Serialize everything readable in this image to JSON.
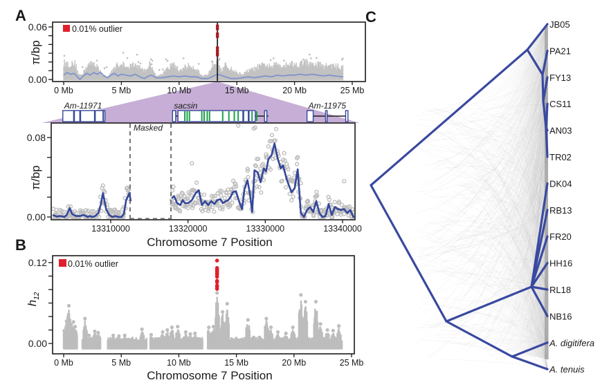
{
  "colors": {
    "outlier": "#e0202a",
    "outlier_dark": "#a81c24",
    "scatter": "#bdbdbd",
    "smooth_line": "#34479a",
    "smooth_line_light": "#7f93cc",
    "tree_branch": "#3949a0",
    "zoom_highlight": "#c6aed6",
    "gene_outline": "#34479a",
    "gene_exon_green": "#1e9e4a",
    "masked_line": "#7a7a7a",
    "axis": "#1a1a1a"
  },
  "panels": {
    "A": {
      "letter": "A"
    },
    "B": {
      "letter": "B"
    },
    "C": {
      "letter": "C"
    }
  },
  "chart_data": [
    {
      "id": "panel-A-genome",
      "type": "scatter",
      "title": "",
      "xlabel": "",
      "ylabel": "π/bp",
      "xlim_mb": [
        -0.9,
        26
      ],
      "ylim": [
        -0.002,
        0.062
      ],
      "xticks": [
        0,
        5,
        10,
        15,
        20,
        25
      ],
      "xtick_labels": [
        "0 Mb",
        "5 Mb",
        "10 Mb",
        "15 Mb",
        "20 Mb",
        "25 Mb"
      ],
      "yticks": [
        0.0,
        0.01,
        0.02,
        0.03,
        0.04,
        0.05,
        0.06
      ],
      "ytick_labels": [
        "0.00",
        "",
        "",
        "",
        "",
        "",
        "0.06"
      ],
      "legend": {
        "label": "0.01% outlier",
        "placement": "top-left"
      },
      "outlier_position_mb": 13.32,
      "outlier_values": [
        0.061,
        0.058,
        0.052,
        0.049,
        0.036,
        0.033,
        0.03,
        0.028
      ],
      "chromosome_end_mb": 24.2,
      "background_envelope_mb": [
        0,
        0.5,
        1,
        1.3,
        1.6,
        2,
        2.5,
        3,
        3.3,
        3.8,
        4.5,
        5,
        5.5,
        6,
        6.5,
        7,
        7.5,
        8,
        8.5,
        9,
        9.5,
        10,
        10.5,
        11,
        11.5,
        12,
        12.5,
        13,
        13.32,
        13.7,
        14,
        14.5,
        15,
        15.5,
        16,
        16.5,
        17,
        17.5,
        18,
        18.5,
        19,
        19.5,
        20,
        20.5,
        21,
        21.5,
        22,
        22.5,
        23,
        23.5,
        24.2
      ],
      "background_envelope_vals": [
        0.019,
        0.017,
        0.018,
        0.006,
        0.005,
        0.016,
        0.018,
        0.015,
        0.006,
        0.003,
        0.015,
        0.019,
        0.012,
        0.018,
        0.014,
        0.01,
        0.018,
        0.004,
        0.006,
        0.012,
        0.018,
        0.01,
        0.014,
        0.016,
        0.012,
        0.004,
        0.006,
        0.02,
        0.024,
        0.01,
        0.016,
        0.012,
        0.008,
        0.006,
        0.01,
        0.012,
        0.015,
        0.017,
        0.014,
        0.018,
        0.016,
        0.019,
        0.017,
        0.018,
        0.02,
        0.016,
        0.018,
        0.015,
        0.016,
        0.015,
        0.014
      ],
      "smoothed_x_mb": [
        0,
        0.3,
        0.6,
        0.9,
        1.2,
        1.4,
        1.7,
        2,
        2.3,
        2.6,
        2.9,
        3.2,
        3.5,
        3.8,
        4.1,
        4.4,
        4.7,
        5,
        5.4,
        5.8,
        6.2,
        6.6,
        7,
        7.2,
        7.6,
        8,
        8.5,
        9,
        9.5,
        10,
        10.5,
        11,
        11.5,
        12,
        12.5,
        13,
        13.32,
        13.6,
        14,
        14.5,
        15,
        15.5,
        16,
        16.5,
        17,
        17.5,
        18,
        18.5,
        19,
        19.5,
        20,
        20.5,
        21,
        21.5,
        22,
        22.5,
        23,
        23.5,
        24.2
      ],
      "smoothed_y": [
        0.005,
        0.008,
        0.006,
        0.007,
        0.003,
        0.0,
        0.004,
        0.007,
        0.005,
        0.008,
        0.006,
        0.008,
        0.004,
        0.002,
        0.005,
        0.007,
        0.004,
        0.006,
        0.005,
        0.004,
        0.006,
        0.003,
        0.001,
        0.003,
        0.005,
        0.002,
        0.002,
        0.003,
        0.004,
        0.003,
        0.004,
        0.003,
        0.003,
        0.001,
        0.001,
        0.004,
        0.006,
        0.005,
        0.003,
        0.001,
        0.001,
        0.002,
        0.003,
        0.002,
        0.003,
        0.004,
        0.003,
        0.005,
        0.004,
        0.005,
        0.005,
        0.006,
        0.005,
        0.006,
        0.005,
        0.004,
        0.005,
        0.004,
        0.003
      ]
    },
    {
      "id": "panel-A-zoom",
      "type": "scatter",
      "title": "",
      "xlabel": "Chromosome 7 Position",
      "ylabel": "π/bp",
      "xlim": [
        13302500,
        13341800
      ],
      "ylim": [
        -0.003,
        0.105
      ],
      "xticks": [
        13310000,
        13320000,
        13330000,
        13340000
      ],
      "xtick_labels": [
        "13310000",
        "13320000",
        "13330000",
        "13340000"
      ],
      "yticks": [
        0.0,
        0.02,
        0.04,
        0.06,
        0.08
      ],
      "ytick_labels": [
        "0.00",
        "",
        "",
        "",
        "0.08"
      ],
      "masked_region": {
        "label": "Masked",
        "start": 13312500,
        "end": 13317800
      },
      "genes": [
        {
          "name": "Am-11971",
          "start": 13303800,
          "end": 13309000,
          "exons": [
            [
              13303800,
              13305200
            ],
            [
              13305300,
              13306000
            ],
            [
              13306100,
              13307900
            ],
            [
              13308000,
              13309000
            ],
            [
              13309050,
              13309250
            ]
          ]
        },
        {
          "name": "sacsin",
          "start": 13318000,
          "end": 13330400,
          "exons": [
            [
              13318000,
              13318400
            ],
            [
              13318700,
              13327100
            ],
            [
              13327200,
              13327800
            ],
            [
              13327900,
              13328700
            ],
            [
              13329900,
              13330200
            ]
          ],
          "green_stripes": [
            13319500,
            13319800,
            13320100,
            13321700,
            13322000,
            13322400,
            13322700,
            13324400,
            13325200,
            13325900,
            13326400,
            13328200,
            13328800
          ]
        },
        {
          "name": "Am-11975",
          "start": 13335400,
          "end": 13340700,
          "exons": [
            [
              13335400,
              13336200
            ],
            [
              13337800,
              13338000
            ],
            [
              13340400,
              13340700
            ]
          ]
        }
      ],
      "smoothed_x": [
        13302500,
        13303000,
        13303500,
        13304000,
        13304300,
        13304700,
        13305000,
        13305500,
        13306000,
        13306500,
        13306800,
        13307000,
        13307300,
        13307600,
        13308000,
        13308400,
        13308700,
        13309000,
        13309400,
        13309800,
        13310200,
        13310600,
        13311000,
        13311400,
        13311700,
        13312000,
        13312400,
        13312600,
        13317900,
        13318200,
        13318600,
        13319000,
        13319300,
        13319600,
        13320000,
        13320500,
        13321000,
        13321400,
        13321800,
        13322200,
        13322600,
        13323000,
        13323400,
        13323800,
        13324200,
        13324500,
        13324900,
        13325200,
        13325500,
        13325800,
        13326200,
        13326600,
        13327000,
        13327300,
        13327700,
        13328000,
        13328300,
        13328600,
        13329000,
        13329400,
        13329800,
        13330100,
        13330400,
        13330800,
        13331200,
        13331600,
        13332000,
        13332300,
        13332700,
        13333000,
        13333400,
        13333800,
        13334200,
        13334600,
        13335000,
        13335400,
        13335800,
        13336200,
        13336600,
        13337000,
        13337400,
        13337800,
        13338200,
        13338600,
        13339000,
        13339400,
        13339800,
        13340200,
        13340600,
        13341000,
        13341400,
        13341800
      ],
      "smoothed_y": [
        0.002,
        0.0005,
        0.001,
        0.0,
        0.002,
        0.009,
        0.003,
        0.001,
        0.001,
        0.002,
        0.001,
        0.0,
        0.001,
        0.0,
        0.001,
        0.004,
        0.012,
        0.024,
        0.008,
        0.002,
        0.0,
        0.001,
        0.0,
        0.0,
        0.003,
        0.017,
        0.024,
        0.016,
        0.019,
        0.021,
        0.014,
        0.012,
        0.017,
        0.014,
        0.014,
        0.017,
        0.024,
        0.027,
        0.012,
        0.016,
        0.012,
        0.016,
        0.013,
        0.017,
        0.018,
        0.014,
        0.016,
        0.017,
        0.02,
        0.025,
        0.026,
        0.016,
        0.008,
        0.028,
        0.037,
        0.024,
        0.005,
        0.047,
        0.045,
        0.035,
        0.049,
        0.046,
        0.058,
        0.062,
        0.074,
        0.059,
        0.049,
        0.052,
        0.04,
        0.033,
        0.025,
        0.029,
        0.048,
        0.004,
        0.0,
        0.007,
        0.01,
        0.005,
        0.016,
        0.004,
        0.0,
        0.001,
        0.013,
        0.002,
        0.01,
        0.008,
        0.007,
        0.008,
        0.004,
        0.007,
        0.0,
        0.001,
        0.001,
        0.003,
        0.005,
        0.006,
        0.006,
        0.012,
        0.015,
        0.008,
        0.004,
        0.002
      ]
    },
    {
      "id": "panel-B",
      "type": "scatter",
      "title": "",
      "xlabel": "Chromosome 7 Position",
      "ylabel": "h12",
      "ylabel_main": "h",
      "ylabel_sub": "12",
      "xlim_mb": [
        -0.9,
        25
      ],
      "ylim": [
        -0.013,
        0.127
      ],
      "xticks": [
        0,
        5,
        10,
        15,
        20,
        25
      ],
      "xtick_labels": [
        "0 Mb",
        "5 Mb",
        "10 Mb",
        "15 Mb",
        "20 Mb",
        "25 Mb"
      ],
      "yticks": [
        0.0,
        0.02,
        0.04,
        0.06,
        0.08,
        0.1,
        0.12
      ],
      "ytick_labels": [
        "0.00",
        "",
        "",
        "",
        "",
        "",
        "0.12"
      ],
      "legend": {
        "label": "0.01% outlier",
        "placement": "top-left"
      },
      "outlier_position_mb": 13.32,
      "outlier_values": [
        0.123,
        0.112,
        0.11,
        0.108,
        0.106,
        0.104,
        0.102,
        0.099,
        0.093,
        0.091,
        0.086,
        0.084,
        0.081
      ],
      "peak_x_mb": [
        0.05,
        0.25,
        0.45,
        0.65,
        0.85,
        1.0,
        1.85,
        2.2,
        2.7,
        3.0,
        4.3,
        4.8,
        5.3,
        5.6,
        6.1,
        6.8,
        7.6,
        8.6,
        9.0,
        9.4,
        9.9,
        10.6,
        11.0,
        11.4,
        12.6,
        13.0,
        13.32,
        13.8,
        14.2,
        14.7,
        15.2,
        16.0,
        16.5,
        17.0,
        17.6,
        18.0,
        18.6,
        19.3,
        19.9,
        20.6,
        21.0,
        21.9,
        22.3,
        22.9,
        23.4,
        23.9
      ],
      "peak_vals": [
        0.019,
        0.033,
        0.056,
        0.028,
        0.032,
        0.025,
        0.037,
        0.012,
        0.018,
        0.016,
        0.012,
        0.011,
        0.012,
        0.005,
        0.004,
        0.021,
        0.013,
        0.017,
        0.02,
        0.024,
        0.025,
        0.017,
        0.014,
        0.015,
        0.024,
        0.025,
        0.075,
        0.047,
        0.059,
        0.003,
        0.005,
        0.035,
        0.009,
        0.009,
        0.037,
        0.024,
        0.017,
        0.015,
        0.024,
        0.072,
        0.062,
        0.062,
        0.029,
        0.02,
        0.019,
        0.026
      ],
      "chromosome_gaps_mb": [
        [
          1.2,
          1.6
        ],
        [
          3.2,
          3.8
        ],
        [
          7.2,
          7.5
        ],
        [
          12.1,
          12.5
        ]
      ]
    },
    {
      "id": "panel-C-tree",
      "type": "tree",
      "title": "",
      "taxa": [
        {
          "label": "JB05",
          "italic": false
        },
        {
          "label": "PA21",
          "italic": false
        },
        {
          "label": "FY13",
          "italic": false
        },
        {
          "label": "CS11",
          "italic": false
        },
        {
          "label": "AN03",
          "italic": false
        },
        {
          "label": "TR02",
          "italic": false
        },
        {
          "label": "DK04",
          "italic": false
        },
        {
          "label": "RB13",
          "italic": false
        },
        {
          "label": "FR20",
          "italic": false
        },
        {
          "label": "HH16",
          "italic": false
        },
        {
          "label": "RL18",
          "italic": false
        },
        {
          "label": "NB16",
          "italic": false
        },
        {
          "label": "A. digitifera",
          "italic": true
        },
        {
          "label": "A. tenuis",
          "italic": true
        }
      ],
      "branches": [
        {
          "from": "root",
          "to": "n_top"
        },
        {
          "from": "root",
          "to": "n_bottom"
        },
        {
          "from": "n_top",
          "to": "JB05"
        },
        {
          "from": "n_top",
          "to": "n_pa"
        },
        {
          "from": "n_pa",
          "to": "PA21"
        },
        {
          "from": "n_pa",
          "to": "n_fy"
        },
        {
          "from": "n_fy",
          "to": "FY13"
        },
        {
          "from": "n_fy",
          "to": "n_cs"
        },
        {
          "from": "n_cs",
          "to": "CS11"
        },
        {
          "from": "n_cs",
          "to": "AN03"
        },
        {
          "from": "n_cs",
          "to": "TR02"
        },
        {
          "from": "n_bottom",
          "to": "n_hh"
        },
        {
          "from": "n_hh",
          "to": "HH16"
        },
        {
          "from": "n_hh",
          "to": "DK04"
        },
        {
          "from": "n_hh",
          "to": "RB13"
        },
        {
          "from": "n_hh",
          "to": "FR20"
        },
        {
          "from": "n_hh",
          "to": "RL18"
        },
        {
          "from": "n_hh",
          "to": "NB16"
        },
        {
          "from": "n_bottom",
          "to": "n_acro"
        },
        {
          "from": "n_acro",
          "to": "A. digitifera"
        },
        {
          "from": "n_acro",
          "to": "A. tenuis"
        }
      ],
      "background": "cloud of gene trees (grey)"
    }
  ]
}
